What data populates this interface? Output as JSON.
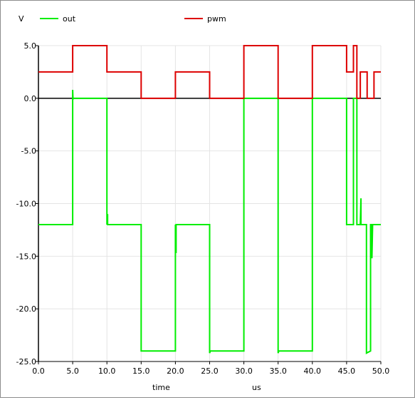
{
  "chart_data": {
    "type": "line",
    "ylabel": "V",
    "xlabel": "time",
    "x_unit": "us",
    "xlim": [
      0,
      50
    ],
    "ylim": [
      -25,
      5
    ],
    "x_ticks": [
      "0.0",
      "5.0",
      "10.0",
      "15.0",
      "20.0",
      "25.0",
      "30.0",
      "35.0",
      "40.0",
      "45.0",
      "50.0"
    ],
    "y_ticks": [
      "5.0",
      "0.0",
      "-5.0",
      "-10.0",
      "-15.0",
      "-20.0",
      "-25.0"
    ],
    "grid": true,
    "legend_position": "top",
    "series": [
      {
        "name": "out",
        "color": "#00ee00",
        "x": [
          0,
          5,
          5,
          5.05,
          5.1,
          10,
          10,
          10.1,
          10.1,
          15,
          15,
          20,
          20,
          20.1,
          20.1,
          20.2,
          25,
          25,
          25.1,
          30,
          30,
          35,
          35,
          35.1,
          40,
          40,
          45,
          45,
          45.1,
          46,
          46,
          46.5,
          46.5,
          47,
          47.1,
          47.1,
          47.9,
          47.9,
          48.5,
          48.5,
          48.7,
          48.7,
          48.8,
          50
        ],
        "y": [
          -12,
          -12,
          0.8,
          -0.1,
          0,
          0,
          -12,
          -11,
          -12,
          -12,
          -24,
          -24,
          -12,
          -14.7,
          -12,
          -12,
          -12,
          -24.2,
          -24,
          -24,
          0,
          0,
          -24.2,
          -24,
          -24,
          0,
          0,
          -12,
          -12,
          -12,
          0,
          0,
          -12,
          -12,
          -9.5,
          -12,
          -12,
          -24.2,
          -24,
          -12,
          -12,
          -15.2,
          -12,
          -12
        ]
      },
      {
        "name": "pwm",
        "color": "#dd0000",
        "x": [
          0,
          5,
          5,
          10,
          10,
          15,
          15,
          20,
          20,
          25,
          25,
          30,
          30,
          35,
          35,
          40,
          40,
          45,
          45,
          46,
          46,
          46.5,
          46.5,
          47,
          47,
          48,
          48,
          48.5,
          48.5,
          49,
          49,
          50
        ],
        "y": [
          2.5,
          2.5,
          5,
          5,
          2.5,
          2.5,
          0,
          0,
          2.5,
          2.5,
          0,
          0,
          5,
          5,
          0,
          0,
          5,
          5,
          2.5,
          2.5,
          5,
          5,
          0,
          0,
          2.5,
          2.5,
          0,
          0,
          0,
          0,
          2.5,
          2.5
        ]
      }
    ]
  }
}
